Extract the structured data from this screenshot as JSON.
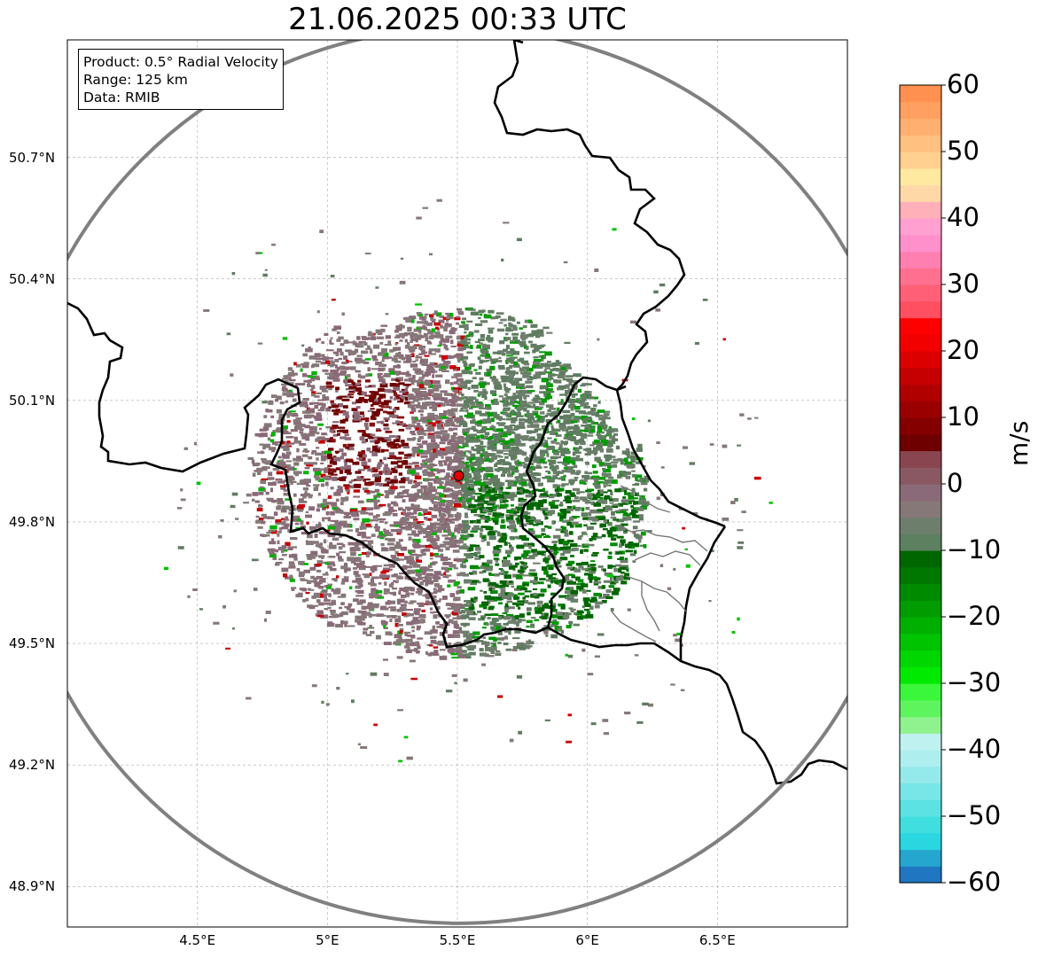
{
  "title": "21.06.2025 00:33 UTC",
  "info": {
    "product": "Product: 0.5° Radial Velocity",
    "range": "Range: 125 km",
    "source": "Data: RMIB"
  },
  "map": {
    "lon_range": [
      4.0,
      7.0
    ],
    "lat_range": [
      48.8,
      50.99
    ],
    "lon_ticks": [
      {
        "value": 4.5,
        "label": "4.5°E"
      },
      {
        "value": 5.0,
        "label": "5°E"
      },
      {
        "value": 5.5,
        "label": "5.5°E"
      },
      {
        "value": 6.0,
        "label": "6°E"
      },
      {
        "value": 6.5,
        "label": "6.5°E"
      }
    ],
    "lat_ticks": [
      {
        "value": 50.7,
        "label": "50.7°N"
      },
      {
        "value": 50.4,
        "label": "50.4°N"
      },
      {
        "value": 50.1,
        "label": "50.1°N"
      },
      {
        "value": 49.8,
        "label": "49.8°N"
      },
      {
        "value": 49.5,
        "label": "49.5°N"
      },
      {
        "value": 49.2,
        "label": "49.2°N"
      },
      {
        "value": 48.9,
        "label": "48.9°N"
      }
    ],
    "radar_site": {
      "lon": 5.505,
      "lat": 49.914
    },
    "range_km": 125,
    "gridlines": true
  },
  "colorbar": {
    "label": "m/s",
    "min": -60,
    "max": 60,
    "ticks": [
      {
        "value": 60,
        "label": "60"
      },
      {
        "value": 50,
        "label": "50"
      },
      {
        "value": 40,
        "label": "40"
      },
      {
        "value": 30,
        "label": "30"
      },
      {
        "value": 20,
        "label": "20"
      },
      {
        "value": 10,
        "label": "10"
      },
      {
        "value": 0,
        "label": "0"
      },
      {
        "value": -10,
        "label": "−10"
      },
      {
        "value": -20,
        "label": "−20"
      },
      {
        "value": -30,
        "label": "−30"
      },
      {
        "value": -40,
        "label": "−40"
      },
      {
        "value": -50,
        "label": "−50"
      },
      {
        "value": -60,
        "label": "−60"
      }
    ],
    "colors": [
      "#2076c0",
      "#24a6cf",
      "#2ad6e0",
      "#40dede",
      "#5ce2e2",
      "#78e6e6",
      "#94eaea",
      "#aeeeee",
      "#bff1f1",
      "#8ff28f",
      "#5df45d",
      "#3bf73b",
      "#00ea00",
      "#00d600",
      "#00c400",
      "#00b000",
      "#009c00",
      "#008a00",
      "#007800",
      "#006600",
      "#5c8060",
      "#6e7e6c",
      "#867878",
      "#8a6a78",
      "#8a5862",
      "#8a4650",
      "#6e0000",
      "#840000",
      "#9a0000",
      "#b00000",
      "#c60000",
      "#dc0000",
      "#f20000",
      "#ff0000",
      "#ff4f60",
      "#ff6078",
      "#ff7090",
      "#ff80b0",
      "#ff90cc",
      "#ffa0d0",
      "#ffb0b8",
      "#ffd8a8",
      "#ffe8a0",
      "#ffd090",
      "#ffc080",
      "#ffb070",
      "#ffa060",
      "#ff9050"
    ]
  }
}
